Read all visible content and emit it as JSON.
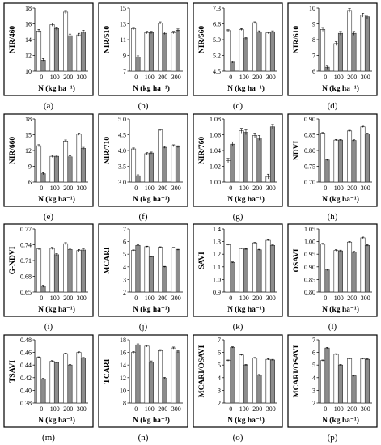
{
  "legend_colors": {
    "left_bar": "#ffffff",
    "right_bar": "#8c8c8c",
    "frame": "#000000"
  },
  "chart_data": [
    {
      "id": "a",
      "panel_label": "(a)",
      "type": "bar",
      "ylabel": "NIR/460",
      "xlabel": "N (kg ha⁻¹)",
      "categories": [
        "0",
        "100",
        "200",
        "300"
      ],
      "ylim": [
        10,
        18
      ],
      "yticks": [
        "10",
        "12",
        "14",
        "16",
        "18"
      ],
      "series": [
        {
          "values": [
            15.1,
            15.9,
            17.5,
            14.6
          ],
          "errors": [
            0.2,
            0.2,
            0.2,
            0.2
          ]
        },
        {
          "values": [
            11.4,
            15.4,
            14.5,
            15.0
          ],
          "errors": [
            0.2,
            0.2,
            0.2,
            0.2
          ]
        }
      ]
    },
    {
      "id": "b",
      "panel_label": "(b)",
      "type": "bar",
      "ylabel": "NIR/510",
      "xlabel": "N (kg ha⁻¹)",
      "categories": [
        "0",
        "100",
        "200",
        "300"
      ],
      "ylim": [
        7,
        15
      ],
      "yticks": [
        "7",
        "9",
        "11",
        "13",
        "15"
      ],
      "series": [
        {
          "values": [
            12.4,
            11.9,
            13.1,
            11.9
          ],
          "errors": [
            0.15,
            0.15,
            0.15,
            0.15
          ]
        },
        {
          "values": [
            8.8,
            11.9,
            11.8,
            12.2
          ],
          "errors": [
            0.15,
            0.15,
            0.15,
            0.15
          ]
        }
      ]
    },
    {
      "id": "c",
      "panel_label": "(c)",
      "type": "bar",
      "ylabel": "NIR/560",
      "xlabel": "N (kg ha⁻¹)",
      "categories": [
        "0",
        "100",
        "200",
        "300"
      ],
      "ylim": [
        4.5,
        7.3
      ],
      "yticks": [
        "4.5",
        "5.2",
        "5.9",
        "6.6",
        "7.3"
      ],
      "series": [
        {
          "values": [
            6.3,
            6.35,
            6.65,
            6.2
          ],
          "errors": [
            0.04,
            0.04,
            0.04,
            0.04
          ]
        },
        {
          "values": [
            4.9,
            5.95,
            6.25,
            6.25
          ],
          "errors": [
            0.04,
            0.04,
            0.04,
            0.04
          ]
        }
      ]
    },
    {
      "id": "d",
      "panel_label": "(d)",
      "type": "bar",
      "ylabel": "NIR/610",
      "xlabel": "N (kg ha⁻¹)",
      "categories": [
        "0",
        "100",
        "200",
        "300"
      ],
      "ylim": [
        6,
        10
      ],
      "yticks": [
        "6",
        "7",
        "8",
        "9",
        "10"
      ],
      "series": [
        {
          "values": [
            8.65,
            7.75,
            9.85,
            9.55
          ],
          "errors": [
            0.12,
            0.12,
            0.12,
            0.12
          ]
        },
        {
          "values": [
            6.25,
            8.4,
            8.4,
            9.45
          ],
          "errors": [
            0.12,
            0.12,
            0.12,
            0.12
          ]
        }
      ]
    },
    {
      "id": "e",
      "panel_label": "(e)",
      "type": "bar",
      "ylabel": "NIR/660",
      "xlabel": "N (kg ha⁻¹)",
      "categories": [
        "0",
        "100",
        "200",
        "300"
      ],
      "ylim": [
        6,
        18
      ],
      "yticks": [
        "6",
        "9",
        "12",
        "15",
        "18"
      ],
      "series": [
        {
          "values": [
            12.9,
            10.9,
            13.8,
            15.1
          ],
          "errors": [
            0.2,
            0.2,
            0.2,
            0.2
          ]
        },
        {
          "values": [
            7.6,
            10.9,
            10.8,
            12.4
          ],
          "errors": [
            0.2,
            0.2,
            0.2,
            0.2
          ]
        }
      ]
    },
    {
      "id": "f",
      "panel_label": "(f)",
      "type": "bar",
      "ylabel": "NIR/710",
      "xlabel": "N (kg ha⁻¹)",
      "categories": [
        "0",
        "100",
        "200",
        "300"
      ],
      "ylim": [
        3.0,
        5.0
      ],
      "yticks": [
        "3.0",
        "3.5",
        "4.0",
        "4.5",
        "5.0"
      ],
      "series": [
        {
          "values": [
            4.05,
            3.9,
            4.65,
            4.15
          ],
          "errors": [
            0.03,
            0.03,
            0.03,
            0.03
          ]
        },
        {
          "values": [
            3.2,
            3.92,
            4.1,
            4.12
          ],
          "errors": [
            0.03,
            0.03,
            0.03,
            0.03
          ]
        }
      ]
    },
    {
      "id": "g",
      "panel_label": "(g)",
      "type": "bar",
      "ylabel": "NIR/760",
      "xlabel": "N (kg ha⁻¹)",
      "categories": [
        "0",
        "100",
        "200",
        "300"
      ],
      "ylim": [
        1.0,
        1.08
      ],
      "yticks": [
        "1.00",
        "1.02",
        "1.04",
        "1.06",
        "1.08"
      ],
      "series": [
        {
          "values": [
            1.027,
            1.065,
            1.059,
            1.007
          ],
          "errors": [
            0.003,
            0.003,
            0.003,
            0.003
          ]
        },
        {
          "values": [
            1.048,
            1.063,
            1.056,
            1.07
          ],
          "errors": [
            0.003,
            0.003,
            0.003,
            0.003
          ]
        }
      ]
    },
    {
      "id": "h",
      "panel_label": "(h)",
      "type": "bar",
      "ylabel": "NDVI",
      "xlabel": "N (kg ha⁻¹)",
      "categories": [
        "0",
        "100",
        "200",
        "300"
      ],
      "ylim": [
        0.7,
        0.9
      ],
      "yticks": [
        "0.70",
        "0.75",
        "0.80",
        "0.85",
        "0.90"
      ],
      "series": [
        {
          "values": [
            0.855,
            0.833,
            0.862,
            0.875
          ],
          "errors": [
            0.002,
            0.002,
            0.002,
            0.002
          ]
        },
        {
          "values": [
            0.77,
            0.833,
            0.832,
            0.853
          ],
          "errors": [
            0.002,
            0.002,
            0.002,
            0.002
          ]
        }
      ]
    },
    {
      "id": "i",
      "panel_label": "(i)",
      "type": "bar",
      "ylabel": "G-NDVI",
      "xlabel": "N (kg ha⁻¹)",
      "categories": [
        "0",
        "100",
        "200",
        "300"
      ],
      "ylim": [
        0.65,
        0.77
      ],
      "yticks": [
        "0.65",
        "0.68",
        "0.71",
        "0.74",
        "0.77"
      ],
      "series": [
        {
          "values": [
            0.732,
            0.733,
            0.742,
            0.729
          ],
          "errors": [
            0.002,
            0.002,
            0.002,
            0.002
          ]
        },
        {
          "values": [
            0.661,
            0.721,
            0.731,
            0.73
          ],
          "errors": [
            0.002,
            0.002,
            0.002,
            0.002
          ]
        }
      ]
    },
    {
      "id": "j",
      "panel_label": "(j)",
      "type": "bar",
      "ylabel": "MCARI",
      "xlabel": "N (kg ha⁻¹)",
      "categories": [
        "0",
        "100",
        "200",
        "300"
      ],
      "ylim": [
        2,
        7
      ],
      "yticks": [
        "2",
        "3",
        "4",
        "5",
        "6",
        "7"
      ],
      "series": [
        {
          "values": [
            5.3,
            5.6,
            5.55,
            5.5
          ],
          "errors": [
            0.04,
            0.04,
            0.04,
            0.04
          ]
        },
        {
          "values": [
            5.7,
            4.8,
            4.0,
            5.35
          ],
          "errors": [
            0.04,
            0.04,
            0.04,
            0.04
          ]
        }
      ]
    },
    {
      "id": "k",
      "panel_label": "(k)",
      "type": "bar",
      "ylabel": "SAVI",
      "xlabel": "N (kg ha⁻¹)",
      "categories": [
        "0",
        "100",
        "200",
        "300"
      ],
      "ylim": [
        0.9,
        1.4
      ],
      "yticks": [
        "0.9",
        "1.0",
        "1.1",
        "1.2",
        "1.3",
        "1.4"
      ],
      "series": [
        {
          "values": [
            1.275,
            1.245,
            1.29,
            1.31
          ],
          "errors": [
            0.004,
            0.004,
            0.004,
            0.004
          ]
        },
        {
          "values": [
            1.135,
            1.24,
            1.235,
            1.27
          ],
          "errors": [
            0.004,
            0.004,
            0.004,
            0.004
          ]
        }
      ]
    },
    {
      "id": "l",
      "panel_label": "(l)",
      "type": "bar",
      "ylabel": "OSAVI",
      "xlabel": "N (kg ha⁻¹)",
      "categories": [
        "0",
        "100",
        "200",
        "300"
      ],
      "ylim": [
        0.8,
        1.05
      ],
      "yticks": [
        "0.80",
        "0.85",
        "0.90",
        "0.95",
        "1.00",
        "1.05"
      ],
      "series": [
        {
          "values": [
            0.99,
            0.965,
            0.998,
            1.015
          ],
          "errors": [
            0.003,
            0.003,
            0.003,
            0.003
          ]
        },
        {
          "values": [
            0.888,
            0.963,
            0.958,
            0.985
          ],
          "errors": [
            0.003,
            0.003,
            0.003,
            0.003
          ]
        }
      ]
    },
    {
      "id": "m",
      "panel_label": "(m)",
      "type": "bar",
      "ylabel": "TSAVI",
      "xlabel": "N (kg ha⁻¹)",
      "categories": [
        "0",
        "100",
        "200",
        "300"
      ],
      "ylim": [
        0.38,
        0.48
      ],
      "yticks": [
        "0.38",
        "0.40",
        "0.42",
        "0.44",
        "0.46",
        "0.48"
      ],
      "series": [
        {
          "values": [
            0.452,
            0.446,
            0.458,
            0.46
          ],
          "errors": [
            0.001,
            0.001,
            0.001,
            0.001
          ]
        },
        {
          "values": [
            0.418,
            0.444,
            0.44,
            0.451
          ],
          "errors": [
            0.001,
            0.001,
            0.001,
            0.001
          ]
        }
      ]
    },
    {
      "id": "n",
      "panel_label": "(n)",
      "type": "bar",
      "ylabel": "TCARI",
      "xlabel": "N (kg ha⁻¹)",
      "categories": [
        "0",
        "100",
        "200",
        "300"
      ],
      "ylim": [
        8,
        18
      ],
      "yticks": [
        "8",
        "10",
        "12",
        "14",
        "16",
        "18"
      ],
      "series": [
        {
          "values": [
            16.0,
            17.0,
            16.3,
            16.7
          ],
          "errors": [
            0.15,
            0.15,
            0.15,
            0.15
          ]
        },
        {
          "values": [
            17.2,
            14.5,
            11.9,
            16.1
          ],
          "errors": [
            0.15,
            0.15,
            0.15,
            0.15
          ]
        }
      ]
    },
    {
      "id": "o",
      "panel_label": "(o)",
      "type": "bar",
      "ylabel": "MCARI/OSAVI",
      "xlabel": "N (kg ha⁻¹)",
      "categories": [
        "0",
        "100",
        "200",
        "300"
      ],
      "ylim": [
        2,
        7
      ],
      "yticks": [
        "2",
        "3",
        "4",
        "5",
        "6",
        "7"
      ],
      "series": [
        {
          "values": [
            5.35,
            5.8,
            5.55,
            5.45
          ],
          "errors": [
            0.05,
            0.05,
            0.05,
            0.05
          ]
        },
        {
          "values": [
            6.4,
            5.0,
            4.2,
            5.4
          ],
          "errors": [
            0.05,
            0.05,
            0.05,
            0.05
          ]
        }
      ]
    },
    {
      "id": "p",
      "panel_label": "(p)",
      "type": "bar",
      "ylabel": "MCARI/OSAVI",
      "xlabel": "N (kg ha⁻¹)",
      "categories": [
        "0",
        "100",
        "200",
        "300"
      ],
      "ylim": [
        2,
        7
      ],
      "yticks": [
        "2",
        "3",
        "4",
        "5",
        "6",
        "7"
      ],
      "series": [
        {
          "values": [
            5.35,
            5.85,
            5.5,
            5.5
          ],
          "errors": [
            0.05,
            0.05,
            0.05,
            0.05
          ]
        },
        {
          "values": [
            6.35,
            5.0,
            4.15,
            5.45
          ],
          "errors": [
            0.05,
            0.05,
            0.05,
            0.05
          ]
        }
      ]
    }
  ]
}
